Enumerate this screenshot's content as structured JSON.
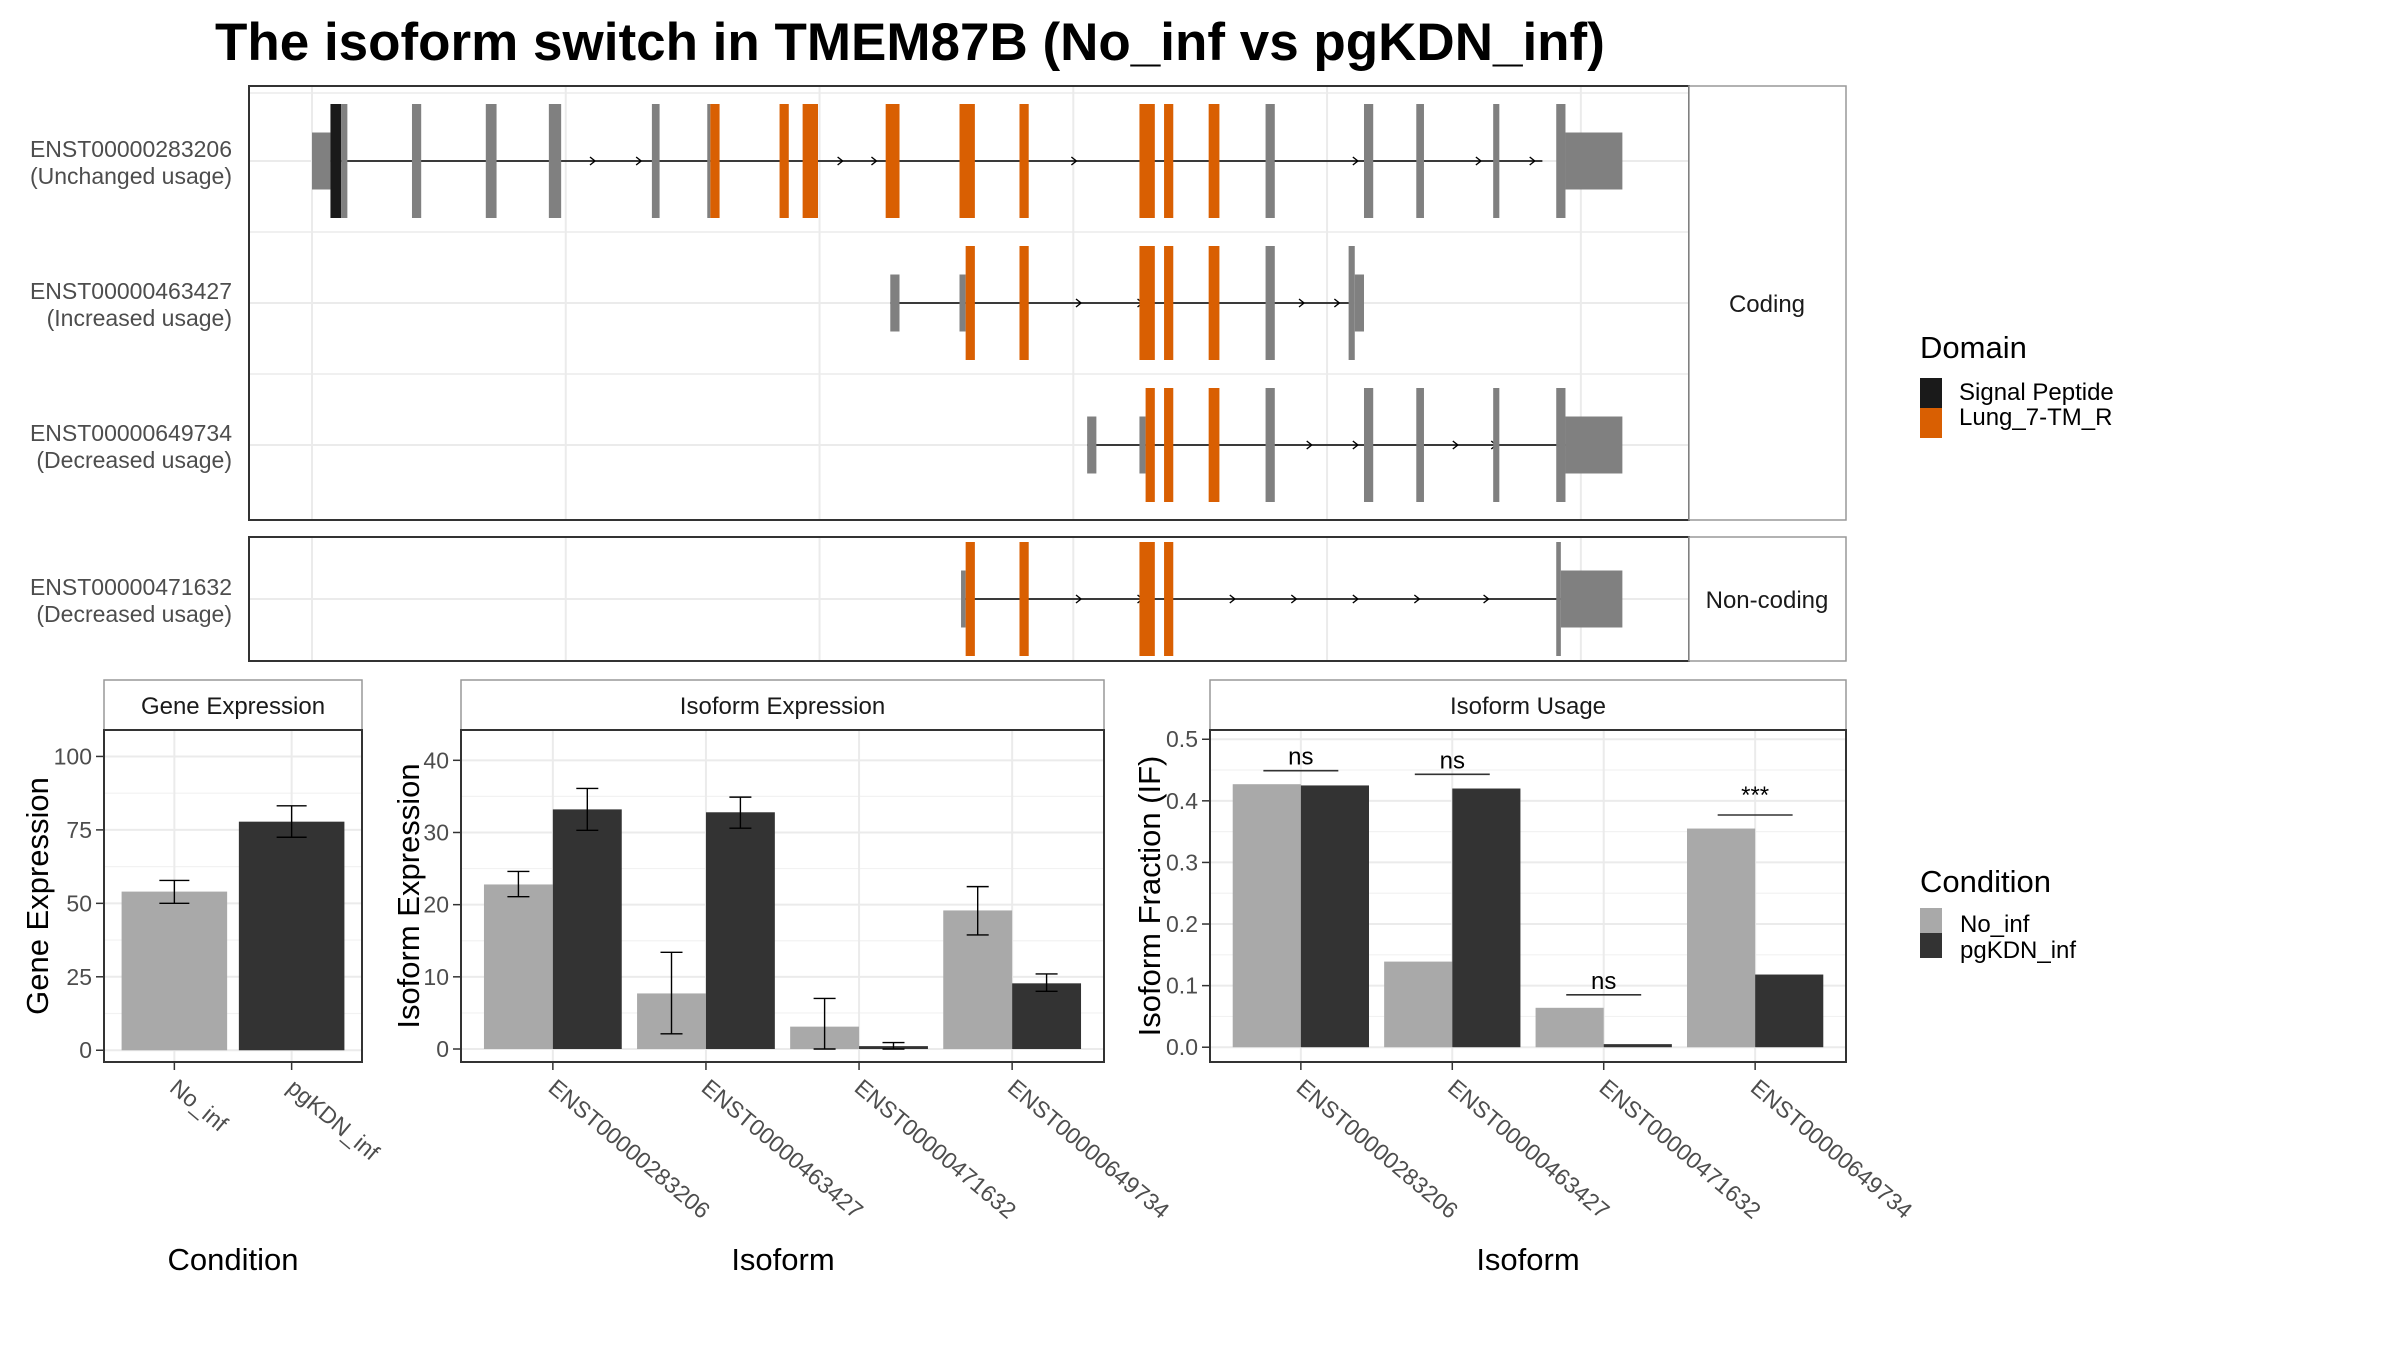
{
  "title": "The isoform switch in TMEM87B (No_inf vs pgKDN_inf)",
  "colors": {
    "signal_peptide": "#1a1a1a",
    "lung_7tm_r": "#d95f02",
    "exon_gray": "#808080",
    "no_inf": "#a9a9a9",
    "pgkdn_inf": "#333333"
  },
  "transcript_plot": {
    "strips": [
      "Coding",
      "Non-coding"
    ],
    "domain_legend": {
      "title": "Domain",
      "items": [
        {
          "label": "Signal Peptide",
          "color_key": "signal_peptide"
        },
        {
          "label": "Lung_7-TM_R",
          "color_key": "lung_7tm_r"
        }
      ]
    },
    "position_units": "relative genomic position (estimated)",
    "transcripts": [
      {
        "id": "ENST00000283206",
        "status": "(Unchanged usage)",
        "group": "Coding",
        "intron": [
          0,
          800
        ],
        "arrows": [
          184,
          214,
          345,
          367,
          497,
          626,
          680,
          760,
          795
        ],
        "exons": [
          {
            "s": 0,
            "e": 12,
            "type": "utr",
            "color": "exon_gray"
          },
          {
            "s": 12,
            "e": 19,
            "type": "cds",
            "color": "signal_peptide"
          },
          {
            "s": 19,
            "e": 23,
            "type": "cds",
            "color": "exon_gray"
          },
          {
            "s": 65,
            "e": 71,
            "type": "cds",
            "color": "exon_gray"
          },
          {
            "s": 113,
            "e": 120,
            "type": "cds",
            "color": "exon_gray"
          },
          {
            "s": 154,
            "e": 162,
            "type": "cds",
            "color": "exon_gray"
          },
          {
            "s": 221,
            "e": 226,
            "type": "cds",
            "color": "exon_gray"
          },
          {
            "s": 257,
            "e": 259,
            "type": "cds",
            "color": "exon_gray"
          },
          {
            "s": 259,
            "e": 265,
            "type": "cds",
            "color": "lung_7tm_r"
          },
          {
            "s": 304,
            "e": 310,
            "type": "cds",
            "color": "lung_7tm_r"
          },
          {
            "s": 319,
            "e": 329,
            "type": "cds",
            "color": "lung_7tm_r"
          },
          {
            "s": 373,
            "e": 382,
            "type": "cds",
            "color": "lung_7tm_r"
          },
          {
            "s": 421,
            "e": 431,
            "type": "cds",
            "color": "lung_7tm_r"
          },
          {
            "s": 460,
            "e": 466,
            "type": "cds",
            "color": "lung_7tm_r"
          },
          {
            "s": 538,
            "e": 548,
            "type": "cds",
            "color": "lung_7tm_r"
          },
          {
            "s": 554,
            "e": 560,
            "type": "cds",
            "color": "lung_7tm_r"
          },
          {
            "s": 583,
            "e": 590,
            "type": "cds",
            "color": "lung_7tm_r"
          },
          {
            "s": 620,
            "e": 626,
            "type": "cds",
            "color": "exon_gray"
          },
          {
            "s": 684,
            "e": 690,
            "type": "cds",
            "color": "exon_gray"
          },
          {
            "s": 718,
            "e": 723,
            "type": "cds",
            "color": "exon_gray"
          },
          {
            "s": 768,
            "e": 772,
            "type": "cds",
            "color": "exon_gray"
          },
          {
            "s": 809,
            "e": 815,
            "type": "cds",
            "color": "exon_gray"
          },
          {
            "s": 815,
            "e": 852,
            "type": "utr",
            "color": "exon_gray"
          }
        ]
      },
      {
        "id": "ENST00000463427",
        "status": "(Increased usage)",
        "group": "Coding",
        "intron": [
          376,
          676
        ],
        "arrows": [
          500,
          540,
          645,
          668
        ],
        "exons": [
          {
            "s": 376,
            "e": 382,
            "type": "utr",
            "color": "exon_gray"
          },
          {
            "s": 421,
            "e": 425,
            "type": "utr",
            "color": "exon_gray"
          },
          {
            "s": 425,
            "e": 431,
            "type": "cds",
            "color": "lung_7tm_r"
          },
          {
            "s": 460,
            "e": 466,
            "type": "cds",
            "color": "lung_7tm_r"
          },
          {
            "s": 538,
            "e": 548,
            "type": "cds",
            "color": "lung_7tm_r"
          },
          {
            "s": 554,
            "e": 560,
            "type": "cds",
            "color": "lung_7tm_r"
          },
          {
            "s": 583,
            "e": 590,
            "type": "cds",
            "color": "lung_7tm_r"
          },
          {
            "s": 620,
            "e": 626,
            "type": "cds",
            "color": "exon_gray"
          },
          {
            "s": 674,
            "e": 678,
            "type": "cds",
            "color": "exon_gray"
          },
          {
            "s": 678,
            "e": 684,
            "type": "utr",
            "color": "exon_gray"
          }
        ]
      },
      {
        "id": "ENST00000649734",
        "status": "(Decreased usage)",
        "group": "Coding",
        "intron": [
          504,
          815
        ],
        "arrows": [
          650,
          680,
          745,
          770
        ],
        "exons": [
          {
            "s": 504,
            "e": 510,
            "type": "utr",
            "color": "exon_gray"
          },
          {
            "s": 538,
            "e": 542,
            "type": "utr",
            "color": "exon_gray"
          },
          {
            "s": 542,
            "e": 548,
            "type": "cds",
            "color": "lung_7tm_r"
          },
          {
            "s": 554,
            "e": 560,
            "type": "cds",
            "color": "lung_7tm_r"
          },
          {
            "s": 583,
            "e": 590,
            "type": "cds",
            "color": "lung_7tm_r"
          },
          {
            "s": 620,
            "e": 626,
            "type": "cds",
            "color": "exon_gray"
          },
          {
            "s": 684,
            "e": 690,
            "type": "cds",
            "color": "exon_gray"
          },
          {
            "s": 718,
            "e": 723,
            "type": "cds",
            "color": "exon_gray"
          },
          {
            "s": 768,
            "e": 772,
            "type": "cds",
            "color": "exon_gray"
          },
          {
            "s": 809,
            "e": 815,
            "type": "cds",
            "color": "exon_gray"
          },
          {
            "s": 815,
            "e": 852,
            "type": "utr",
            "color": "exon_gray"
          }
        ]
      },
      {
        "id": "ENST00000471632",
        "status": "(Decreased usage)",
        "group": "Non-coding",
        "intron": [
          423,
          812
        ],
        "arrows": [
          500,
          540,
          600,
          640,
          680,
          720,
          765
        ],
        "exons": [
          {
            "s": 422,
            "e": 425,
            "type": "utr",
            "color": "exon_gray"
          },
          {
            "s": 425,
            "e": 431,
            "type": "cds",
            "color": "lung_7tm_r"
          },
          {
            "s": 460,
            "e": 466,
            "type": "cds",
            "color": "lung_7tm_r"
          },
          {
            "s": 538,
            "e": 548,
            "type": "cds",
            "color": "lung_7tm_r"
          },
          {
            "s": 554,
            "e": 560,
            "type": "cds",
            "color": "lung_7tm_r"
          },
          {
            "s": 809,
            "e": 812,
            "type": "cds",
            "color": "exon_gray"
          },
          {
            "s": 812,
            "e": 852,
            "type": "utr",
            "color": "exon_gray"
          }
        ]
      }
    ]
  },
  "chart_data": [
    {
      "type": "bar",
      "title": "Gene Expression",
      "xlabel": "Condition",
      "ylabel": "Gene Expression",
      "ylim": [
        -4,
        109
      ],
      "yticks": [
        0,
        25,
        50,
        75,
        100
      ],
      "grid": true,
      "categories": [
        "No_inf",
        "pgKDN_inf"
      ],
      "values": [
        54.0,
        77.8
      ],
      "error_low": [
        50.0,
        72.5
      ],
      "error_high": [
        57.8,
        83.2
      ],
      "color_keys": [
        "no_inf",
        "pgkdn_inf"
      ]
    },
    {
      "type": "bar",
      "title": "Isoform Expression",
      "xlabel": "Isoform",
      "ylabel": "Isoform Expression",
      "ylim": [
        -1.8,
        44.2
      ],
      "yticks": [
        0,
        10,
        20,
        30,
        40
      ],
      "grid": true,
      "categories": [
        "ENST00000283206",
        "ENST00000463427",
        "ENST00000471632",
        "ENST00000649734"
      ],
      "series": [
        {
          "name": "No_inf",
          "color_key": "no_inf",
          "values": [
            22.8,
            7.7,
            3.1,
            19.2
          ],
          "error_low": [
            21.1,
            2.1,
            0.0,
            15.8
          ],
          "error_high": [
            24.6,
            13.4,
            7.0,
            22.5
          ]
        },
        {
          "name": "pgKDN_inf",
          "color_key": "pgkdn_inf",
          "values": [
            33.2,
            32.8,
            0.4,
            9.1
          ],
          "error_low": [
            30.3,
            30.6,
            0.0,
            8.0
          ],
          "error_high": [
            36.1,
            34.9,
            0.9,
            10.4
          ]
        }
      ]
    },
    {
      "type": "bar",
      "title": "Isoform Usage",
      "xlabel": "Isoform",
      "ylabel": "Isoform Fraction (IF)",
      "ylim": [
        -0.024,
        0.515
      ],
      "yticks": [
        "0.0",
        "0.1",
        "0.2",
        "0.3",
        "0.4",
        "0.5"
      ],
      "grid": true,
      "categories": [
        "ENST00000283206",
        "ENST00000463427",
        "ENST00000471632",
        "ENST00000649734"
      ],
      "series": [
        {
          "name": "No_inf",
          "color_key": "no_inf",
          "values": [
            0.427,
            0.139,
            0.064,
            0.355
          ]
        },
        {
          "name": "pgKDN_inf",
          "color_key": "pgkdn_inf",
          "values": [
            0.425,
            0.42,
            0.005,
            0.118
          ]
        }
      ],
      "significance": [
        {
          "label": "ns",
          "y": 0.449
        },
        {
          "label": "ns",
          "y": 0.443
        },
        {
          "label": "ns",
          "y": 0.085
        },
        {
          "label": "***",
          "y": 0.377
        }
      ]
    }
  ],
  "condition_legend": {
    "title": "Condition",
    "items": [
      {
        "label": "No_inf",
        "color_key": "no_inf"
      },
      {
        "label": "pgKDN_inf",
        "color_key": "pgkdn_inf"
      }
    ]
  }
}
